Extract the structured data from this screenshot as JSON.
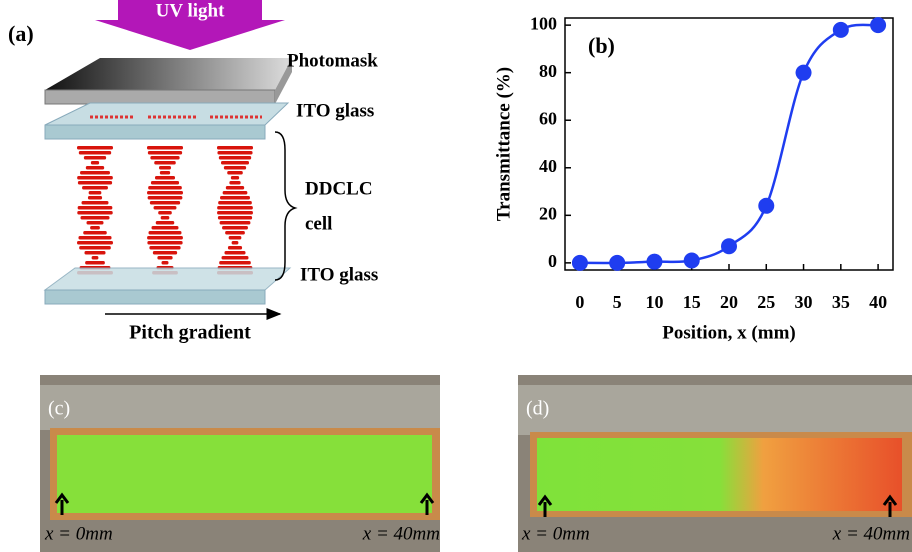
{
  "panel_a": {
    "label": "(a)",
    "uv": "UV light",
    "photomask": "Photomask",
    "ito_top": "ITO glass",
    "cell": [
      "DDCLC",
      "cell"
    ],
    "ito_bottom": "ITO glass",
    "gradient": "Pitch gradient"
  },
  "chart_data": {
    "type": "line",
    "annotation": "(b)",
    "ylabel": "Transmittance (%)",
    "xlabel": "Position, x (mm)",
    "x": [
      0,
      5,
      10,
      15,
      20,
      25,
      30,
      35,
      40
    ],
    "values": [
      0,
      0,
      0.5,
      1,
      7,
      24,
      80,
      98,
      100
    ],
    "color": "#1f3df0",
    "xlim": [
      -2,
      42
    ],
    "ylim": [
      -3,
      103
    ],
    "xticks": [
      0,
      5,
      10,
      15,
      20,
      25,
      30,
      35,
      40
    ],
    "yticks": [
      0,
      20,
      40,
      60,
      80,
      100
    ]
  },
  "photos": [
    {
      "label": "(c)",
      "left": "x = 0mm",
      "right": "x = 40mm"
    },
    {
      "label": "(d)",
      "left": "x = 0mm",
      "right": "x = 40mm"
    }
  ]
}
